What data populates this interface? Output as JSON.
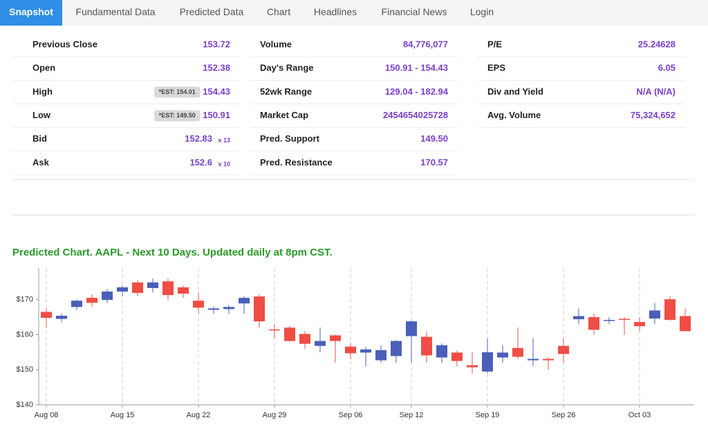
{
  "nav": [
    "Snapshot",
    "Fundamental Data",
    "Predicted Data",
    "Chart",
    "Headlines",
    "Financial News",
    "Login"
  ],
  "stats": [
    [
      {
        "label": "Previous Close",
        "value": "153.72"
      },
      {
        "label": "Open",
        "value": "152.38"
      },
      {
        "label": "High",
        "value": "154.43",
        "badge": "*EST: 154.01"
      },
      {
        "label": "Low",
        "value": "150.91",
        "badge": "*EST: 149.50"
      },
      {
        "label": "Bid",
        "value": "152.83",
        "suffix": "x 13"
      },
      {
        "label": "Ask",
        "value": "152.6",
        "suffix": "x 10"
      }
    ],
    [
      {
        "label": "Volume",
        "value": "84,776,077"
      },
      {
        "label": "Day's Range",
        "value": "150.91 - 154.43"
      },
      {
        "label": "52wk Range",
        "value": "129.04 - 182.94"
      },
      {
        "label": "Market Cap",
        "value": "2454654025728"
      },
      {
        "label": "Pred. Support",
        "value": "149.50"
      },
      {
        "label": "Pred. Resistance",
        "value": "170.57"
      }
    ],
    [
      {
        "label": "P/E",
        "value": "25.24628"
      },
      {
        "label": "EPS",
        "value": "6.05"
      },
      {
        "label": "Div and Yield",
        "value": "N/A (N/A)"
      },
      {
        "label": "Avg. Volume",
        "value": "75,324,652"
      }
    ]
  ],
  "chart_data": {
    "type": "candlestick",
    "title": "Predicted Chart. AAPL - Next 10 Days. Updated daily at 8pm CST.",
    "categories": [
      "Aug 08",
      null,
      null,
      null,
      null,
      "Aug 15",
      null,
      null,
      null,
      null,
      "Aug 22",
      null,
      null,
      null,
      null,
      "Aug 29",
      null,
      null,
      null,
      null,
      "Sep 06",
      null,
      null,
      null,
      "Sep 12",
      null,
      null,
      null,
      null,
      "Sep 19",
      null,
      null,
      null,
      null,
      "Sep 26",
      null,
      null,
      null,
      null,
      "Oct 03",
      null,
      null,
      null
    ],
    "open": [
      166.5,
      164.5,
      167.9,
      170.5,
      169.9,
      172.3,
      174.9,
      173.3,
      175.2,
      173.5,
      169.7,
      167.1,
      167.3,
      168.9,
      170.9,
      161.5,
      162.0,
      160.2,
      156.8,
      159.8,
      156.6,
      154.9,
      152.7,
      153.9,
      159.6,
      159.4,
      153.5,
      154.9,
      151.3,
      149.5,
      153.5,
      156.2,
      152.7,
      153.1,
      156.8,
      164.4,
      165.0,
      164.0,
      164.5,
      163.6,
      164.6,
      170.1,
      165.3
    ],
    "high": [
      167.5,
      166.0,
      170.0,
      171.5,
      173.0,
      174.0,
      175.5,
      176.0,
      176.0,
      174.0,
      172.0,
      168.0,
      168.5,
      171.0,
      171.5,
      163.0,
      162.5,
      161.0,
      162.0,
      160.0,
      157.5,
      156.5,
      157.0,
      158.5,
      164.0,
      161.0,
      157.5,
      155.5,
      155.0,
      159.0,
      157.0,
      162.0,
      159.0,
      153.5,
      159.0,
      167.5,
      166.0,
      165.0,
      165.0,
      165.0,
      169.0,
      171.0,
      167.5
    ],
    "low": [
      162.0,
      163.5,
      167.0,
      168.0,
      169.0,
      171.0,
      171.0,
      172.0,
      170.0,
      170.5,
      166.0,
      166.0,
      166.0,
      166.0,
      162.0,
      159.0,
      158.0,
      156.0,
      155.0,
      152.0,
      153.0,
      151.0,
      152.0,
      152.0,
      152.0,
      152.0,
      152.0,
      151.0,
      149.0,
      149.0,
      152.0,
      153.0,
      151.0,
      150.0,
      152.0,
      163.0,
      160.0,
      163.0,
      160.0,
      161.0,
      163.0,
      164.0,
      161.0
    ],
    "close": [
      164.8,
      165.4,
      169.7,
      169.1,
      172.3,
      173.5,
      171.9,
      174.9,
      171.3,
      171.7,
      167.7,
      167.5,
      167.9,
      170.5,
      163.8,
      161.4,
      158.2,
      157.4,
      158.2,
      158.2,
      154.7,
      155.8,
      155.6,
      158.2,
      163.8,
      154.1,
      157.0,
      152.5,
      150.7,
      155.0,
      154.9,
      153.7,
      153.1,
      152.7,
      154.5,
      165.3,
      161.4,
      164.2,
      164.3,
      162.4,
      166.9,
      164.2,
      161.0
    ],
    "up_color": "#4a5fb8",
    "down_color": "#ef4d45",
    "ylim": [
      140,
      179
    ],
    "yticks": [
      {
        "value": 140,
        "label": "$140"
      },
      {
        "value": 150,
        "label": "$150"
      },
      {
        "value": 160,
        "label": "$160"
      },
      {
        "value": 170,
        "label": "$170"
      }
    ],
    "grid": true
  }
}
